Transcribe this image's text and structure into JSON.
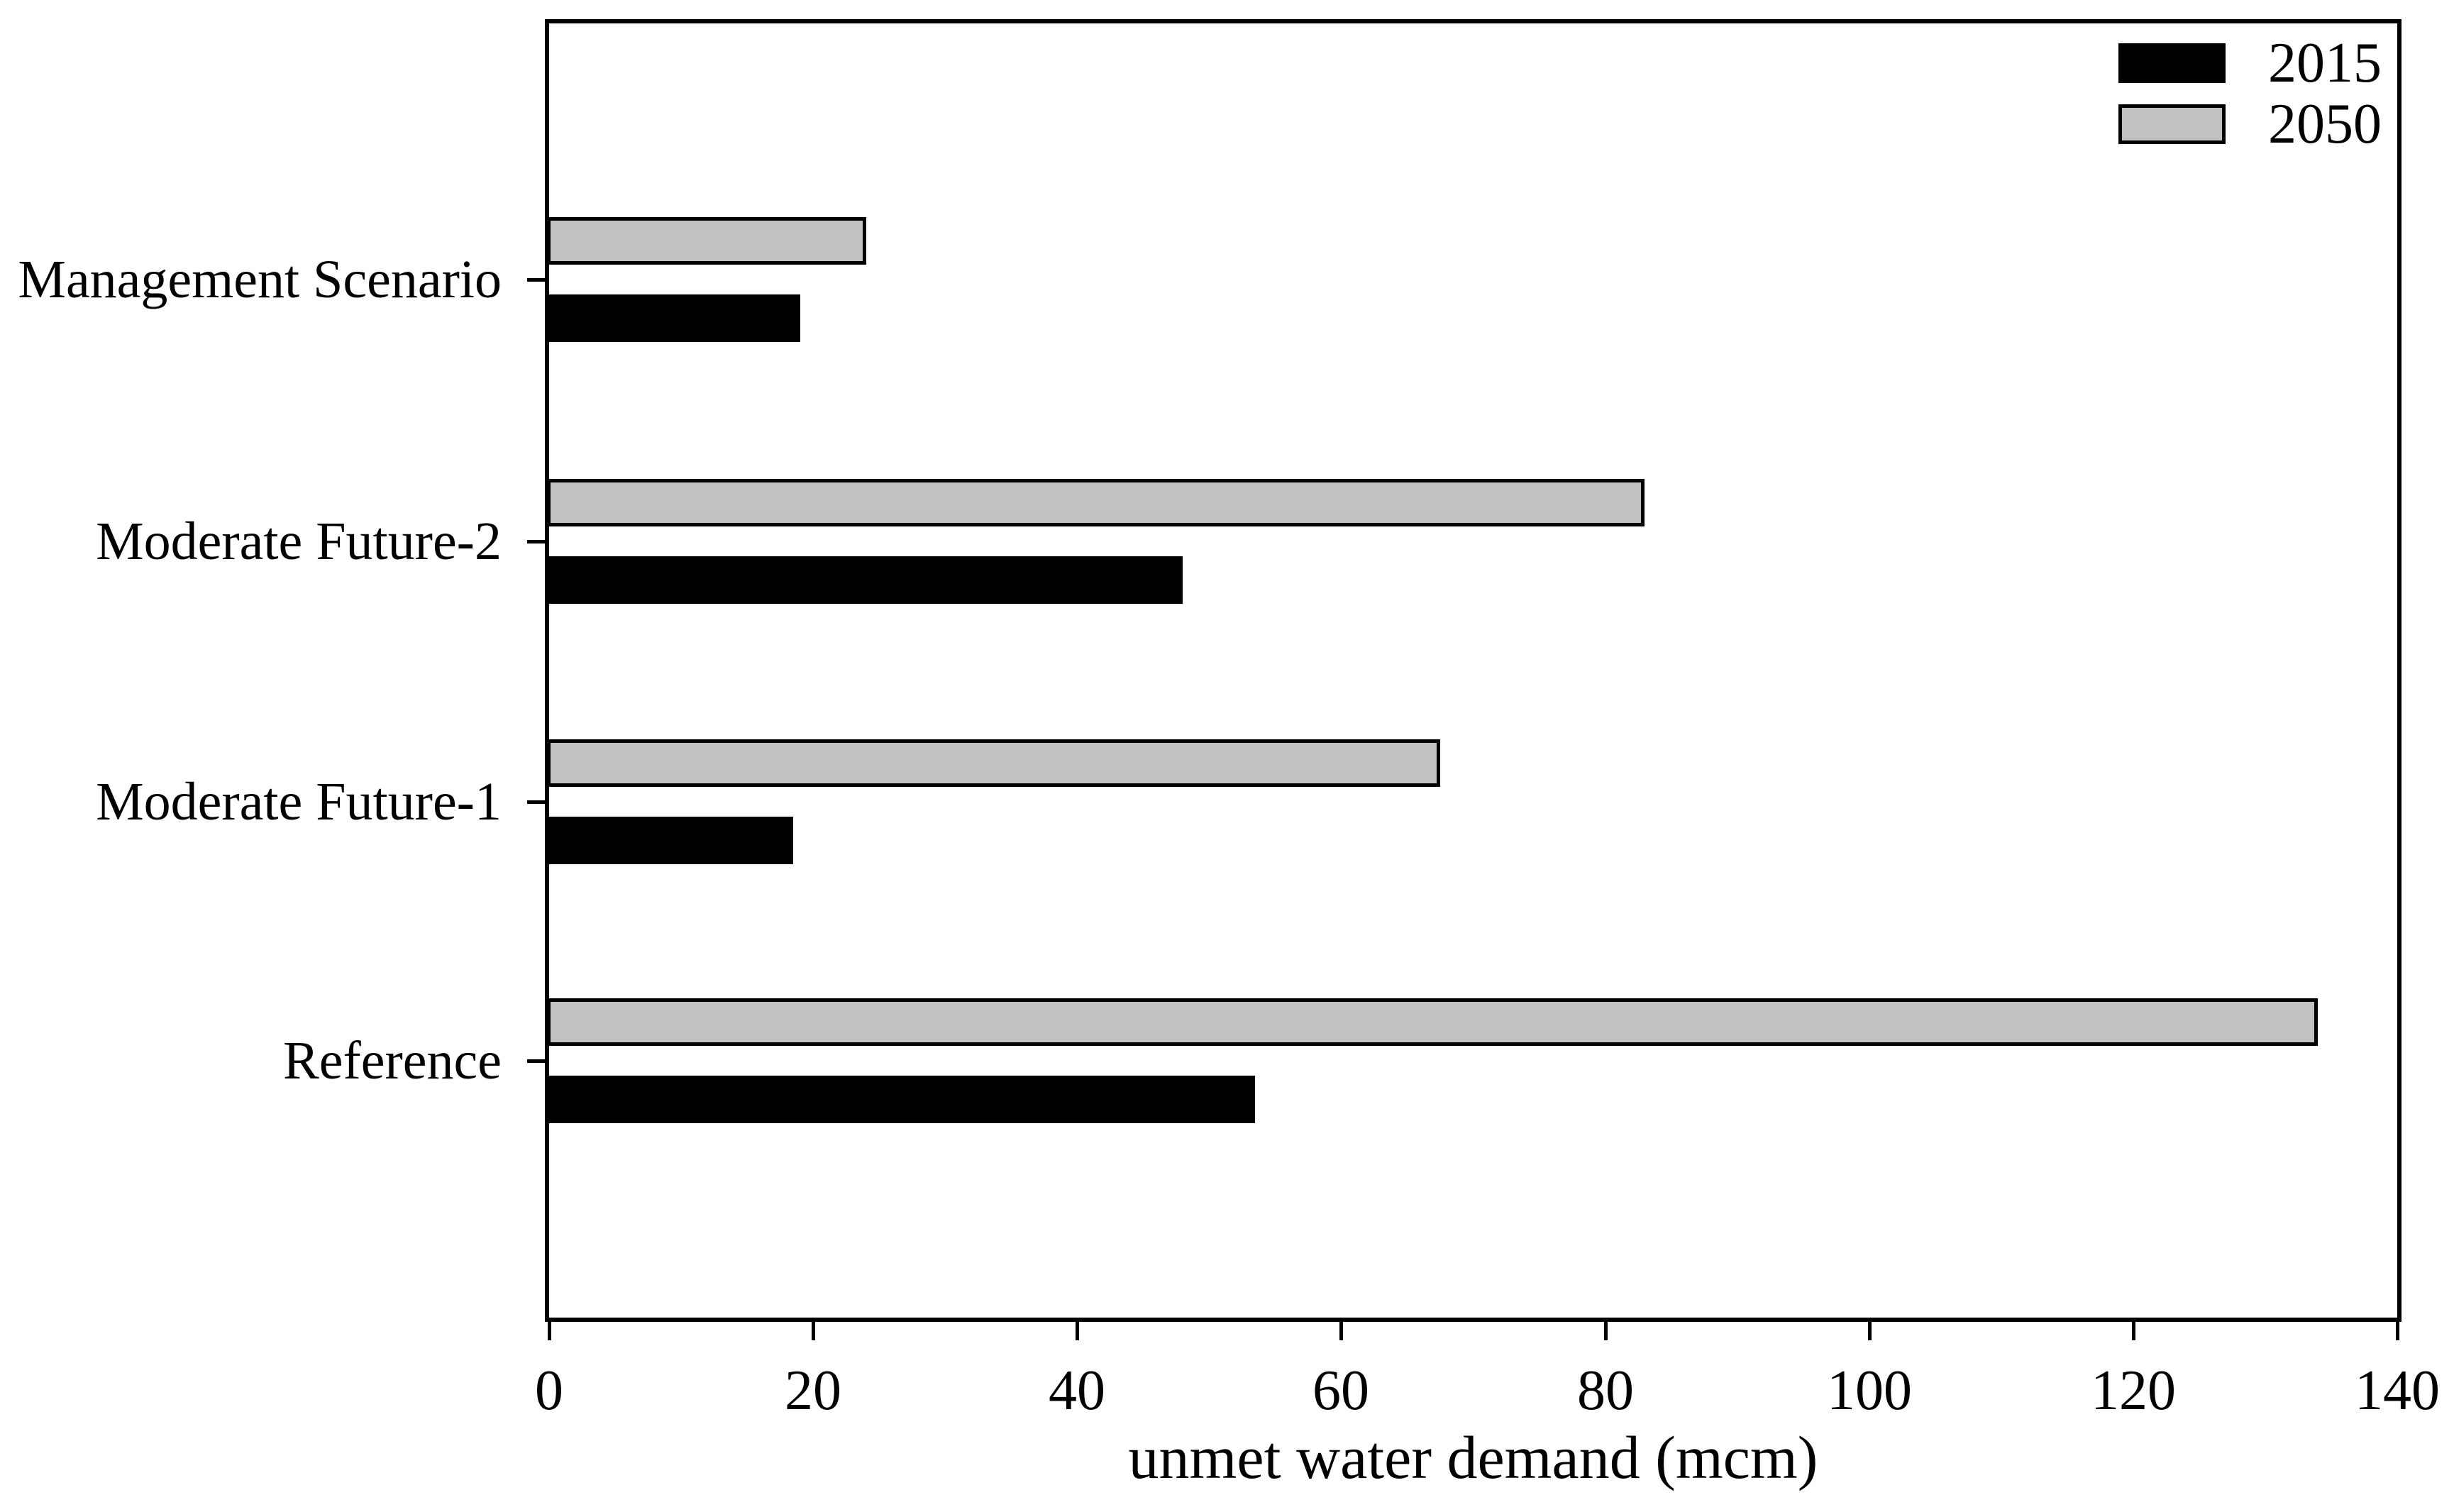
{
  "chart_data": {
    "type": "bar",
    "orientation": "horizontal",
    "title": "",
    "xlabel": "unmet water demand (mcm)",
    "ylabel": "",
    "xlim": [
      0,
      140
    ],
    "xticks": [
      0,
      20,
      40,
      60,
      80,
      100,
      120,
      140
    ],
    "grid": false,
    "background": "#ffffff",
    "plot_border_color": "#000000",
    "bar_outline_color": "#000000",
    "legend_position": "top-right-inside-plot",
    "categories_top_to_bottom": [
      "Management Scenario",
      "Moderate Future-2",
      "Moderate Future-1",
      "Reference"
    ],
    "series": [
      {
        "name": "2015",
        "color": "#000000",
        "values": [
          19,
          48,
          18.5,
          53.5
        ]
      },
      {
        "name": "2050",
        "color": "#c1c1c1",
        "values": [
          24,
          83,
          67.5,
          134
        ]
      }
    ],
    "group_layout": "within each category the 2050 bar is drawn above the 2015 bar"
  }
}
